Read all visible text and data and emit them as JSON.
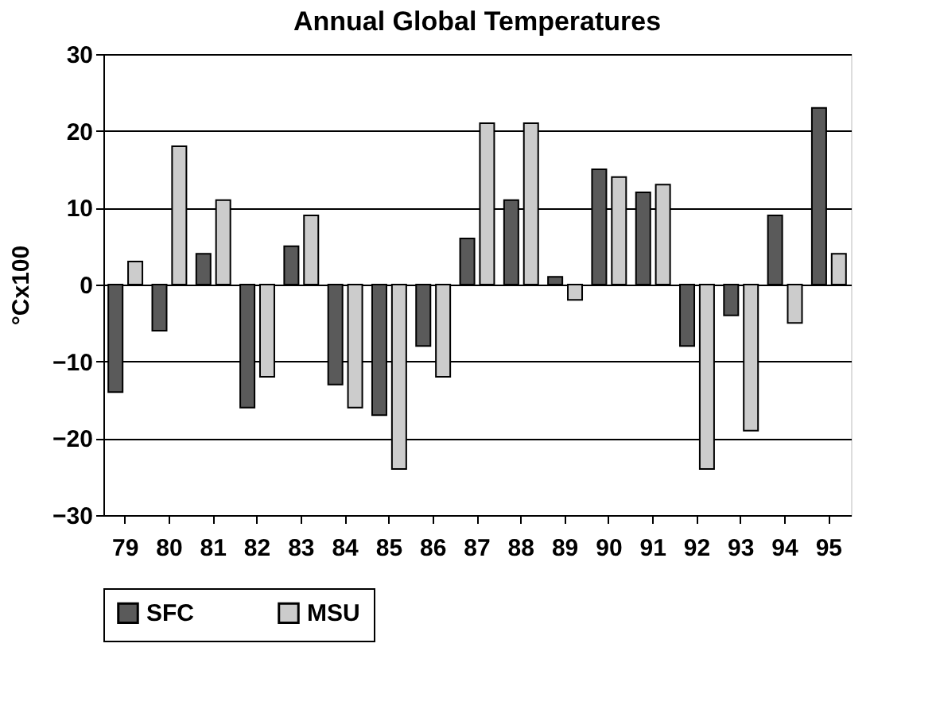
{
  "chart_data": {
    "type": "bar",
    "title": "Annual Global Temperatures",
    "ylabel": "°Cx100",
    "categories": [
      "79",
      "80",
      "81",
      "82",
      "83",
      "84",
      "85",
      "86",
      "87",
      "88",
      "89",
      "90",
      "91",
      "92",
      "93",
      "94",
      "95"
    ],
    "series": [
      {
        "name": "SFC",
        "color": "#5a5a5a",
        "values": [
          -14,
          -6,
          4,
          -16,
          5,
          -13,
          -17,
          -8,
          6,
          11,
          1,
          15,
          12,
          -8,
          -4,
          9,
          23
        ]
      },
      {
        "name": "MSU",
        "color": "#cccccc",
        "values": [
          3,
          18,
          11,
          -12,
          9,
          -16,
          -24,
          -12,
          21,
          21,
          -2,
          14,
          13,
          -24,
          -19,
          -5,
          4
        ]
      }
    ],
    "ylim": [
      -30,
      30
    ],
    "yticks": [
      -30,
      -20,
      -10,
      0,
      10,
      20,
      30
    ],
    "grid": "y",
    "legend": "bottom"
  }
}
